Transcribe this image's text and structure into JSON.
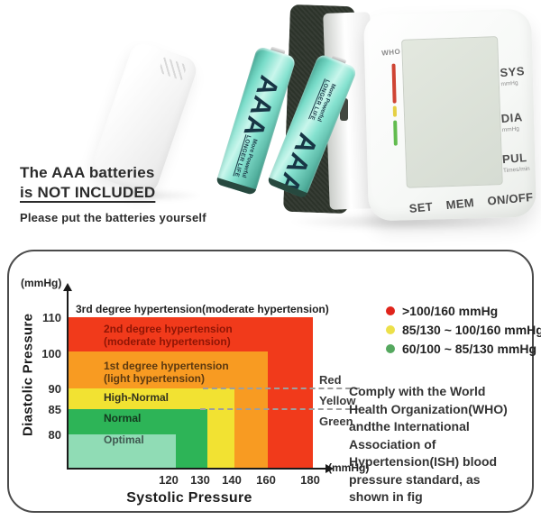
{
  "photo": {
    "caption": {
      "line1": "The AAA batteries",
      "line2": "is NOT INCLUDED",
      "sub": "Please put the batteries yourself"
    },
    "battery": {
      "name": "AAA",
      "line1": "More Powerful",
      "line2": "LONGER LIFE"
    },
    "device": {
      "who_label": "WHO",
      "indicator_colors": [
        "#cf4433",
        "#e5d044",
        "#62bc4f"
      ],
      "readouts": [
        {
          "label": "SYS",
          "unit": "mmHg"
        },
        {
          "label": "DIA",
          "unit": "mmHg"
        },
        {
          "label": "PUL",
          "unit": "Times/min"
        }
      ],
      "buttons": [
        "SET",
        "MEM",
        "ON/OFF"
      ]
    }
  },
  "chart_data": {
    "type": "area",
    "xlabel": "Systolic Pressure",
    "ylabel": "Diastolic Pressure",
    "x_unit": "(mmHg)",
    "y_unit": "(mmHg)",
    "x_ticks": [
      "120",
      "130",
      "140",
      "160",
      "180"
    ],
    "y_ticks": [
      "110",
      "100",
      "90",
      "85",
      "80"
    ],
    "xlim": [
      0,
      190
    ],
    "ylim": [
      0,
      120
    ],
    "grid": false,
    "legend_position": "right-top",
    "annotation_above": "3rd degree hypertension(moderate hypertension)",
    "zones": [
      {
        "label": "2nd degree hypertension",
        "sublabel": "(moderate hypertension)",
        "color": "#f13a1b",
        "sys_max": 180,
        "dia_max": 110
      },
      {
        "label": "1st degree hypertension",
        "sublabel": "(light hypertension)",
        "color": "#f89b22",
        "sys_max": 160,
        "dia_max": 100
      },
      {
        "label": "High-Normal",
        "sublabel": "",
        "color": "#f2e232",
        "sys_max": 140,
        "dia_max": 90
      },
      {
        "label": "Normal",
        "sublabel": "",
        "color": "#2db457",
        "sys_max": 130,
        "dia_max": 85
      },
      {
        "label": "Optimal",
        "sublabel": "",
        "color": "#90dcb5",
        "sys_max": 120,
        "dia_max": 80
      }
    ],
    "threshold_lines": [
      {
        "dia": 90,
        "label": "Red"
      },
      {
        "dia": 85,
        "label": "Yellow"
      }
    ],
    "right_labels": [
      "Red",
      "Yellow",
      "Green"
    ],
    "legend": [
      {
        "color": "#e0241b",
        "text": ">100/160 mmHg"
      },
      {
        "color": "#ece04a",
        "text": "85/130 ~ 100/160 mmHg"
      },
      {
        "color": "#55a85f",
        "text": "60/100 ~ 85/130 mmHg"
      }
    ],
    "note": "Comply with the World\nHealth Organization(WHO)\nandthe International\nAssociation of\nHypertension(ISH) blood\npressure standard, as\nshown in fig"
  }
}
